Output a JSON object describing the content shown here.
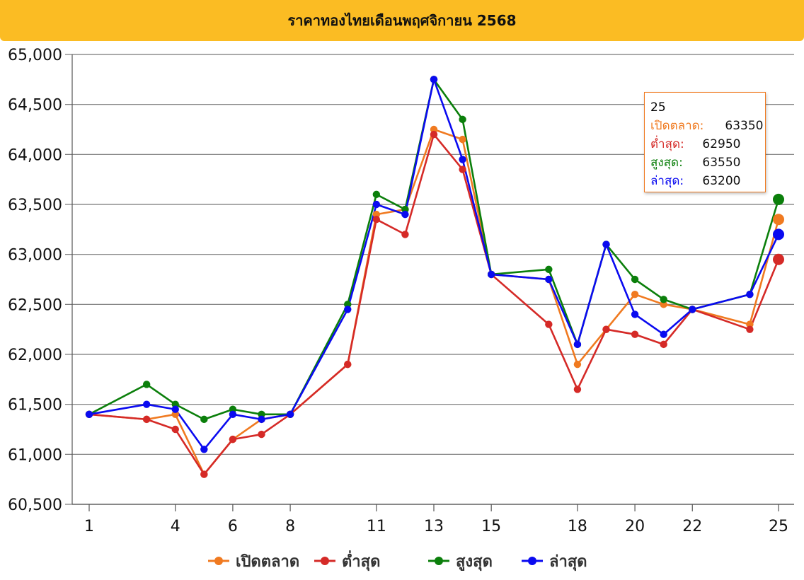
{
  "title": "ราคาทองไทยเดือนพฤศจิกายน 2568",
  "chart_data": {
    "type": "line",
    "x": [
      1,
      3,
      4,
      5,
      6,
      7,
      8,
      10,
      11,
      12,
      13,
      14,
      15,
      17,
      18,
      19,
      20,
      21,
      22,
      24,
      25
    ],
    "x_tick_labels": [
      "1",
      "4",
      "6",
      "8",
      "11",
      "13",
      "15",
      "18",
      "20",
      "22",
      "25"
    ],
    "y_tick_labels": [
      "60,500",
      "61,000",
      "61,500",
      "62,000",
      "62,500",
      "63,000",
      "63,500",
      "64,000",
      "64,500",
      "65,000"
    ],
    "ylim": [
      60500,
      65000
    ],
    "grid": true,
    "legend_position": "bottom",
    "series": [
      {
        "name": "เปิดตลาด",
        "color": "#f07a20",
        "values": [
          61400,
          61350,
          61400,
          60800,
          61150,
          61350,
          61400,
          61900,
          63400,
          63450,
          64250,
          64150,
          62800,
          62750,
          61900,
          62250,
          62600,
          62500,
          62450,
          62300,
          63350
        ]
      },
      {
        "name": "ต่ำสุด",
        "color": "#d52a27",
        "values": [
          61400,
          61350,
          61250,
          60800,
          61150,
          61200,
          61400,
          61900,
          63350,
          63200,
          64200,
          63850,
          62800,
          62300,
          61650,
          62250,
          62200,
          62100,
          62450,
          62250,
          62950
        ]
      },
      {
        "name": "สูงสุด",
        "color": "#0b7f0b",
        "values": [
          61400,
          61700,
          61500,
          61350,
          61450,
          61400,
          61400,
          62500,
          63600,
          63450,
          64750,
          64350,
          62800,
          62850,
          62100,
          63100,
          62750,
          62550,
          62450,
          62600,
          63550
        ]
      },
      {
        "name": "ล่าสุด",
        "color": "#0a0af0",
        "values": [
          61400,
          61500,
          61450,
          61050,
          61400,
          61350,
          61400,
          62450,
          63500,
          63400,
          64750,
          63950,
          62800,
          62750,
          62100,
          63100,
          62400,
          62200,
          62450,
          62600,
          63200
        ]
      }
    ]
  },
  "tooltip": {
    "day": "25",
    "rows": [
      {
        "label": "เปิดตลาด:",
        "value": "63350",
        "color": "#f07a20"
      },
      {
        "label": "ต่ำสุด:",
        "value": "62950",
        "color": "#d52a27"
      },
      {
        "label": "สูงสุด:",
        "value": "63550",
        "color": "#0b7f0b"
      },
      {
        "label": "ล่าสุด:",
        "value": "63200",
        "color": "#0a0af0"
      }
    ]
  }
}
